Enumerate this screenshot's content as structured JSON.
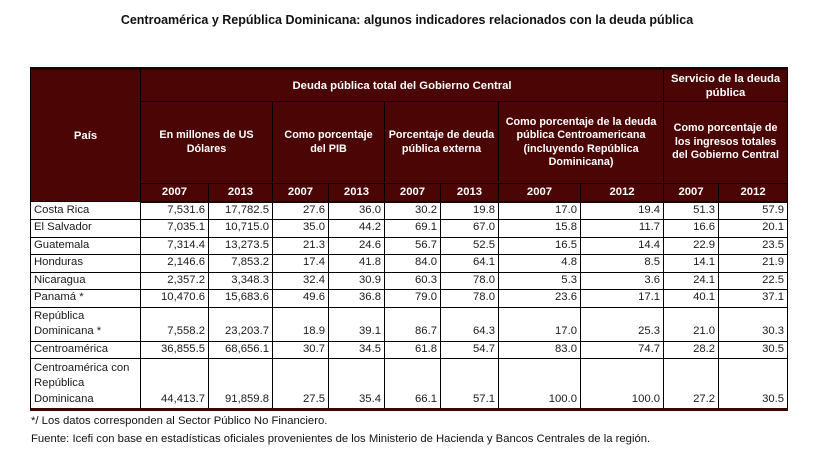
{
  "title": "Centroamérica y República Dominicana: algunos indicadores relacionados con la deuda pública",
  "colors": {
    "header_bg": "#4c0505",
    "header_text": "#ffffff",
    "border": "#000000",
    "body_text": "#1a1a1a"
  },
  "table": {
    "corner_label": "País",
    "group_headers": [
      {
        "label": "Deuda pública total del Gobierno Central",
        "colspan": 8
      },
      {
        "label": "Servicio de la deuda pública",
        "colspan": 2
      }
    ],
    "sub_headers": [
      {
        "label": "En millones de US Dólares",
        "colspan": 2
      },
      {
        "label": "Como porcentaje del PIB",
        "colspan": 2
      },
      {
        "label": "Porcentaje de deuda pública externa",
        "colspan": 2
      },
      {
        "label": "Como porcentaje de la deuda pública Centroamericana (incluyendo República Dominicana)",
        "colspan": 2
      },
      {
        "label": "Como porcentaje de los ingresos totales del Gobierno Central",
        "colspan": 2
      }
    ],
    "year_headers": [
      "2007",
      "2013",
      "2007",
      "2013",
      "2007",
      "2013",
      "2007",
      "2012",
      "2007",
      "2012"
    ],
    "rows": [
      {
        "country": "Costa Rica",
        "values": [
          "7,531.6",
          "17,782.5",
          "27.6",
          "36.0",
          "30.2",
          "19.8",
          "17.0",
          "19.4",
          "51.3",
          "57.9"
        ]
      },
      {
        "country": "El Salvador",
        "values": [
          "7,035.1",
          "10,715.0",
          "35.0",
          "44.2",
          "69.1",
          "67.0",
          "15.8",
          "11.7",
          "16.6",
          "20.1"
        ]
      },
      {
        "country": "Guatemala",
        "values": [
          "7,314.4",
          "13,273.5",
          "21.3",
          "24.6",
          "56.7",
          "52.5",
          "16.5",
          "14.4",
          "22.9",
          "23.5"
        ]
      },
      {
        "country": "Honduras",
        "values": [
          "2,146.6",
          "7,853.2",
          "17.4",
          "41.8",
          "84.0",
          "64.1",
          "4.8",
          "8.5",
          "14.1",
          "21.9"
        ]
      },
      {
        "country": "Nicaragua",
        "values": [
          "2,357.2",
          "3,348.3",
          "32.4",
          "30.9",
          "60.3",
          "78.0",
          "5.3",
          "3.6",
          "24.1",
          "22.5"
        ]
      },
      {
        "country": "Panamá *",
        "values": [
          "10,470.6",
          "15,683.6",
          "49.6",
          "36.8",
          "79.0",
          "78.0",
          "23.6",
          "17.1",
          "40.1",
          "37.1"
        ]
      },
      {
        "country": "República Dominicana *",
        "values": [
          "7,558.2",
          "23,203.7",
          "18.9",
          "39.1",
          "86.7",
          "64.3",
          "17.0",
          "25.3",
          "21.0",
          "30.3"
        ]
      },
      {
        "country": "Centroamérica",
        "values": [
          "36,855.5",
          "68,656.1",
          "30.7",
          "34.5",
          "61.8",
          "54.7",
          "83.0",
          "74.7",
          "28.2",
          "30.5"
        ]
      },
      {
        "country": "Centroamérica con República Dominicana",
        "values": [
          "44,413.7",
          "91,859.8",
          "27.5",
          "35.4",
          "66.1",
          "57.1",
          "100.0",
          "100.0",
          "27.2",
          "30.5"
        ]
      }
    ]
  },
  "footnotes": [
    "*/ Los datos corresponden al Sector Público No Financiero.",
    "Fuente: Icefi con base en estadísticas oficiales provenientes de los Ministerio de Hacienda y Bancos Centrales de la región."
  ]
}
